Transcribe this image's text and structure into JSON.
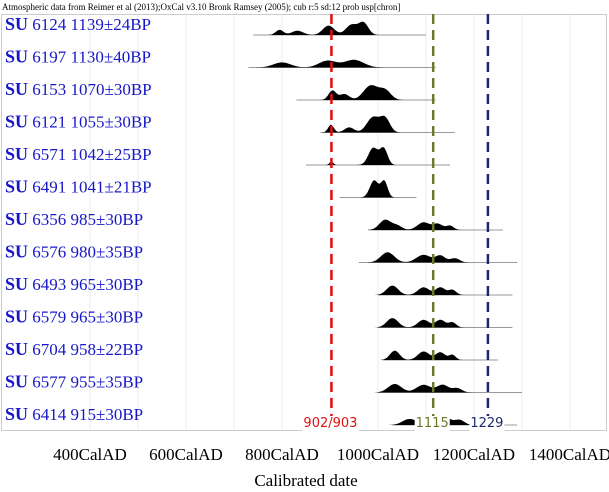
{
  "header": "Atmospheric data from Reimer et al (2013);OxCal v3.10 Bronk Ramsey (2005); cub r:5 sd:12 prob usp[chron]",
  "chart_data": {
    "type": "area",
    "title": "",
    "xlabel": "Calibrated date",
    "ylabel": "",
    "x_ticks": [
      "400CalAD",
      "600CalAD",
      "800CalAD",
      "1000CalAD",
      "1200CalAD",
      "1400CalAD"
    ],
    "x_tick_values": [
      400,
      600,
      800,
      1000,
      1200,
      1400
    ],
    "xlim": [
      300,
      1500
    ],
    "grid": true,
    "series": [
      {
        "su": "SU",
        "rest": " 6124  1139±24BP",
        "range": [
          740,
          1100
        ],
        "peaks": [
          [
            795,
            8,
            0.3
          ],
          [
            832,
            12,
            0.25
          ],
          [
            897,
            12,
            0.55
          ],
          [
            945,
            12,
            0.6
          ],
          [
            970,
            10,
            0.7
          ]
        ]
      },
      {
        "su": "SU",
        "rest": " 6197  1130±40BP",
        "range": [
          730,
          1120
        ],
        "peaks": [
          [
            800,
            18,
            0.3
          ],
          [
            895,
            18,
            0.4
          ],
          [
            950,
            20,
            0.45
          ]
        ]
      },
      {
        "su": "SU",
        "rest": " 6153  1070±30BP",
        "range": [
          830,
          1120
        ],
        "peaks": [
          [
            905,
            8,
            0.55
          ],
          [
            930,
            10,
            0.35
          ],
          [
            985,
            15,
            0.85
          ],
          [
            1015,
            12,
            0.55
          ]
        ]
      },
      {
        "su": "SU",
        "rest": " 6121  1055±30BP",
        "range": [
          880,
          1160
        ],
        "peaks": [
          [
            902,
            6,
            0.45
          ],
          [
            940,
            10,
            0.3
          ],
          [
            990,
            13,
            0.9
          ],
          [
            1015,
            10,
            0.8
          ]
        ]
      },
      {
        "su": "SU",
        "rest": " 6571  1042±25BP",
        "range": [
          850,
          1150
        ],
        "peaks": [
          [
            903,
            4,
            0.2
          ],
          [
            990,
            10,
            1.0
          ],
          [
            1012,
            8,
            0.95
          ]
        ]
      },
      {
        "su": "SU",
        "rest": " 6491  1041±21BP",
        "range": [
          920,
          1080
        ],
        "peaks": [
          [
            992,
            9,
            1.0
          ],
          [
            1013,
            7,
            0.95
          ]
        ]
      },
      {
        "su": "SU",
        "rest": " 6356  985±30BP",
        "range": [
          980,
          1260
        ],
        "peaks": [
          [
            1015,
            12,
            0.6
          ],
          [
            1040,
            10,
            0.25
          ],
          [
            1095,
            13,
            0.45
          ],
          [
            1125,
            10,
            0.35
          ],
          [
            1150,
            8,
            0.25
          ]
        ]
      },
      {
        "su": "SU",
        "rest": " 6576  980±35BP",
        "range": [
          960,
          1290
        ],
        "peaks": [
          [
            1020,
            14,
            0.6
          ],
          [
            1095,
            15,
            0.45
          ],
          [
            1130,
            10,
            0.4
          ],
          [
            1160,
            10,
            0.25
          ]
        ]
      },
      {
        "su": "SU",
        "rest": " 6493  965±30BP",
        "range": [
          1000,
          1280
        ],
        "peaks": [
          [
            1030,
            12,
            0.55
          ],
          [
            1095,
            12,
            0.45
          ],
          [
            1130,
            10,
            0.45
          ],
          [
            1155,
            8,
            0.3
          ]
        ]
      },
      {
        "su": "SU",
        "rest": " 6579  965±30BP",
        "range": [
          1000,
          1280
        ],
        "peaks": [
          [
            1030,
            12,
            0.55
          ],
          [
            1095,
            12,
            0.45
          ],
          [
            1130,
            10,
            0.45
          ],
          [
            1155,
            8,
            0.3
          ]
        ]
      },
      {
        "su": "SU",
        "rest": " 6704  958±22BP",
        "range": [
          1010,
          1250
        ],
        "peaks": [
          [
            1035,
            10,
            0.55
          ],
          [
            1095,
            12,
            0.5
          ],
          [
            1130,
            10,
            0.45
          ],
          [
            1155,
            7,
            0.3
          ]
        ]
      },
      {
        "su": "SU",
        "rest": " 6577  955±35BP",
        "range": [
          1000,
          1300
        ],
        "peaks": [
          [
            1035,
            14,
            0.5
          ],
          [
            1095,
            15,
            0.45
          ],
          [
            1135,
            12,
            0.45
          ],
          [
            1165,
            10,
            0.25
          ]
        ]
      },
      {
        "su": "SU",
        "rest": " 6414  915±30BP",
        "range": [
          1030,
          1290
        ],
        "peaks": [
          [
            1065,
            14,
            0.35
          ],
          [
            1100,
            12,
            0.3
          ],
          [
            1140,
            12,
            0.45
          ],
          [
            1170,
            10,
            0.3
          ]
        ]
      }
    ],
    "markers": [
      {
        "value": 903,
        "label": "902/903",
        "color": "#e01010"
      },
      {
        "value": 1115,
        "label": "1115",
        "color": "#6b7a2a"
      },
      {
        "value": 1229,
        "label": "1229",
        "color": "#1a2a6a"
      }
    ]
  }
}
